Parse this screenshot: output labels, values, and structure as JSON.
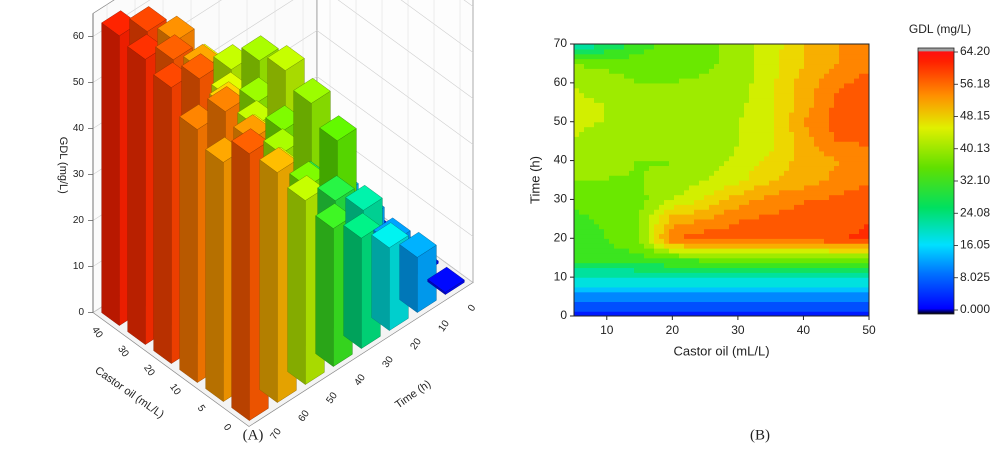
{
  "panel_a": {
    "caption": "(A)",
    "zlabel": "GDL (mg/L)",
    "xlabel": "Castor oil (mL/L)",
    "ylabel": "Time (h)",
    "z_ticks": [
      0,
      10,
      20,
      30,
      40,
      50,
      60
    ],
    "x_ticks": [
      0,
      5,
      10,
      20,
      30,
      40
    ],
    "y_ticks": [
      0,
      10,
      20,
      30,
      40,
      50,
      60,
      70
    ]
  },
  "panel_b": {
    "caption": "(B)",
    "legend_title": "GDL (mg/L)",
    "colorbar_ticks": [
      "64.20",
      "56.18",
      "48.15",
      "40.13",
      "32.10",
      "24.08",
      "16.05",
      "8.025",
      "0.000"
    ]
  },
  "chart_data": [
    {
      "type": "bar",
      "subtype": "3d-bar",
      "zlabel": "GDL (mg/L)",
      "xlabel": "Castor oil (mL/L)",
      "ylabel": "Time (h)",
      "zlim": [
        0,
        65
      ],
      "castor_oil": [
        5,
        10,
        20,
        30,
        40,
        50
      ],
      "time": [
        0,
        10,
        20,
        30,
        40,
        50,
        60,
        70
      ],
      "values": [
        [
          0.5,
          12,
          18,
          24,
          30,
          40,
          50,
          58
        ],
        [
          0.5,
          11,
          22,
          28,
          35,
          42,
          53,
          52
        ],
        [
          0.5,
          12,
          33,
          27,
          38,
          45,
          55,
          55
        ],
        [
          0.8,
          13,
          37,
          35,
          40,
          48,
          58,
          60
        ],
        [
          1.0,
          14,
          40,
          37,
          42,
          52,
          58,
          62
        ],
        [
          1.2,
          15,
          38,
          40,
          44,
          54,
          60,
          63
        ]
      ]
    },
    {
      "type": "heatmap",
      "subtype": "contour",
      "xlabel": "Castor oil (mL/L)",
      "ylabel": "Time (h)",
      "xlim": [
        5,
        50
      ],
      "ylim": [
        0,
        70
      ],
      "x": [
        5,
        10,
        15,
        20,
        25,
        30,
        35,
        40,
        45,
        50
      ],
      "y": [
        0,
        5,
        10,
        15,
        20,
        25,
        30,
        35,
        40,
        45,
        50,
        55,
        60,
        65,
        70
      ],
      "z": [
        [
          1,
          1,
          1,
          1,
          1,
          1,
          1,
          1,
          1,
          1
        ],
        [
          10,
          10,
          10,
          10,
          10,
          10,
          10,
          10,
          10,
          10
        ],
        [
          20,
          20,
          20,
          21,
          20,
          20,
          20,
          21,
          21,
          21
        ],
        [
          30,
          30,
          31,
          33,
          34,
          34,
          34,
          34,
          35,
          35
        ],
        [
          30,
          32,
          36,
          56,
          59,
          58,
          58,
          58,
          60,
          61
        ],
        [
          31,
          33,
          36,
          50,
          52,
          56,
          57,
          58,
          58,
          60
        ],
        [
          33,
          34,
          35,
          40,
          45,
          50,
          54,
          56,
          57,
          60
        ],
        [
          36,
          36,
          36,
          37,
          40,
          43,
          48,
          50,
          53,
          55
        ],
        [
          38,
          37,
          36,
          36,
          38,
          41,
          45,
          50,
          52,
          53
        ],
        [
          40,
          38,
          37,
          37,
          38,
          40,
          43,
          50,
          56,
          57
        ],
        [
          41,
          40,
          38,
          37,
          38,
          40,
          43,
          52,
          58,
          60
        ],
        [
          41,
          40,
          37,
          37,
          37,
          39,
          43,
          50,
          57,
          60
        ],
        [
          40,
          38,
          36,
          36,
          37,
          38,
          43,
          50,
          55,
          58
        ],
        [
          36,
          35,
          34,
          35,
          35,
          38,
          43,
          48,
          52,
          55
        ],
        [
          20,
          24,
          30,
          34,
          35,
          38,
          42,
          48,
          52,
          56
        ]
      ],
      "colorbar": {
        "title": "GDL (mg/L)",
        "min": 0.0,
        "max": 64.2,
        "ticks": [
          64.2,
          56.18,
          48.15,
          40.13,
          32.1,
          24.08,
          16.05,
          8.025,
          0.0
        ]
      },
      "x_ticks": [
        10,
        20,
        30,
        40,
        50
      ],
      "y_ticks": [
        0,
        10,
        20,
        30,
        40,
        50,
        60,
        70
      ]
    }
  ]
}
